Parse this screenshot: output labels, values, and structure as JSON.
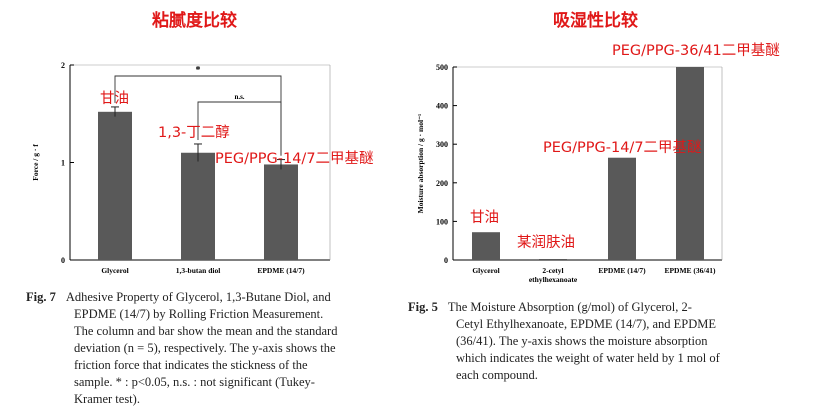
{
  "headings": {
    "left": "粘腻度比较",
    "right": "吸湿性比较"
  },
  "colors": {
    "bar": "#595959",
    "annotation": "#e01818",
    "axis": "#000000",
    "caption_text": "#222222"
  },
  "chart_data": [
    {
      "type": "bar",
      "ylabel": "Force / g · f",
      "ylim": [
        0,
        2
      ],
      "yticks": [
        "0",
        "1",
        "2"
      ],
      "categories": [
        "Glycerol",
        "1,3-butan diol",
        "EPDME (14/7)"
      ],
      "values": [
        1.52,
        1.1,
        0.98
      ],
      "errors": [
        0.05,
        0.09,
        0.05
      ],
      "annotations": [
        "甘油",
        "1,3-丁二醇",
        "PEG/PPG-14/7二甲基醚"
      ],
      "significance": [
        {
          "from": 0,
          "to": 2,
          "label": "*"
        },
        {
          "from": 1,
          "to": 2,
          "label": "n.s."
        }
      ]
    },
    {
      "type": "bar",
      "ylabel": "Moisture absorption / g · mol⁻¹",
      "ylim": [
        0,
        500
      ],
      "yticks": [
        "0",
        "100",
        "200",
        "300",
        "400",
        "500"
      ],
      "categories": [
        "Glycerol",
        "2-cetyl ethylhexanoate",
        "EPDME (14/7)",
        "EPDME (36/41)"
      ],
      "values": [
        72,
        2,
        265,
        500
      ],
      "annotations": [
        "甘油",
        "某润肤油",
        "PEG/PPG-14/7二甲基醚",
        "PEG/PPG-36/41二甲基醚"
      ]
    }
  ],
  "captions": {
    "left": {
      "figno": "Fig. 7",
      "lines": [
        "Adhesive Property of Glycerol, 1,3-Butane Diol, and",
        "EPDME (14/7) by Rolling Friction Measurement.",
        "The column and bar show the mean and the standard",
        "deviation (n = 5), respectively.  The y-axis shows the",
        "friction force that indicates the stickness of the",
        "sample.  * : p<0.05, n.s. : not significant (Tukey-",
        "Kramer test)."
      ]
    },
    "right": {
      "figno": "Fig. 5",
      "lines": [
        "The Moisture Absorption (g/mol) of Glycerol, 2-",
        "Cetyl Ethylhexanoate, EPDME (14/7), and EPDME",
        "(36/41).  The y-axis shows the moisture absorption",
        "which indicates the weight of water held by 1 mol of",
        "each compound."
      ]
    }
  }
}
